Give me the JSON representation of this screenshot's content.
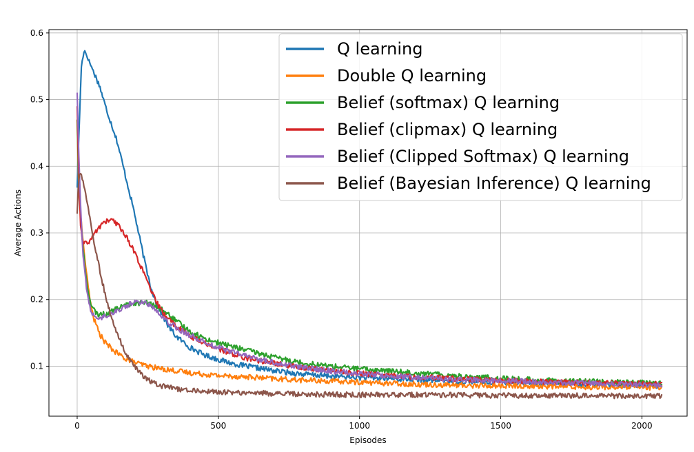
{
  "chart_data": {
    "type": "line",
    "title": "",
    "xlabel": "Episodes",
    "ylabel": "Average Actions",
    "xlim": [
      -100,
      2160
    ],
    "ylim": [
      0.025,
      0.605
    ],
    "xticks": [
      0,
      500,
      1000,
      1500,
      2000
    ],
    "yticks": [
      0.1,
      0.2,
      0.3,
      0.4,
      0.5,
      0.6
    ],
    "grid": true,
    "legend_position": "top-right",
    "noise_amplitude": 0.004,
    "series": [
      {
        "name": "Q learning",
        "color": "#1f77b4",
        "points": [
          [
            0,
            0.37
          ],
          [
            8,
            0.47
          ],
          [
            15,
            0.55
          ],
          [
            25,
            0.575
          ],
          [
            40,
            0.56
          ],
          [
            60,
            0.54
          ],
          [
            80,
            0.52
          ],
          [
            100,
            0.49
          ],
          [
            120,
            0.465
          ],
          [
            140,
            0.44
          ],
          [
            160,
            0.405
          ],
          [
            180,
            0.37
          ],
          [
            200,
            0.335
          ],
          [
            220,
            0.295
          ],
          [
            240,
            0.255
          ],
          [
            260,
            0.22
          ],
          [
            280,
            0.195
          ],
          [
            300,
            0.178
          ],
          [
            320,
            0.162
          ],
          [
            350,
            0.145
          ],
          [
            400,
            0.128
          ],
          [
            450,
            0.117
          ],
          [
            500,
            0.11
          ],
          [
            550,
            0.104
          ],
          [
            600,
            0.1
          ],
          [
            700,
            0.093
          ],
          [
            800,
            0.088
          ],
          [
            900,
            0.085
          ],
          [
            1000,
            0.083
          ],
          [
            1200,
            0.08
          ],
          [
            1400,
            0.077
          ],
          [
            1600,
            0.075
          ],
          [
            1800,
            0.073
          ],
          [
            2000,
            0.071
          ],
          [
            2070,
            0.07
          ]
        ]
      },
      {
        "name": "Double Q learning",
        "color": "#ff7f0e",
        "points": [
          [
            0,
            0.47
          ],
          [
            5,
            0.37
          ],
          [
            12,
            0.33
          ],
          [
            20,
            0.29
          ],
          [
            30,
            0.25
          ],
          [
            45,
            0.2
          ],
          [
            60,
            0.17
          ],
          [
            80,
            0.148
          ],
          [
            100,
            0.135
          ],
          [
            130,
            0.123
          ],
          [
            160,
            0.114
          ],
          [
            200,
            0.106
          ],
          [
            250,
            0.1
          ],
          [
            300,
            0.096
          ],
          [
            400,
            0.09
          ],
          [
            500,
            0.086
          ],
          [
            600,
            0.084
          ],
          [
            700,
            0.081
          ],
          [
            800,
            0.079
          ],
          [
            1000,
            0.076
          ],
          [
            1200,
            0.073
          ],
          [
            1400,
            0.071
          ],
          [
            1600,
            0.07
          ],
          [
            1800,
            0.069
          ],
          [
            2000,
            0.068
          ],
          [
            2070,
            0.068
          ]
        ]
      },
      {
        "name": "Belief (softmax) Q learning",
        "color": "#2ca02c",
        "points": [
          [
            0,
            0.47
          ],
          [
            5,
            0.39
          ],
          [
            12,
            0.33
          ],
          [
            20,
            0.28
          ],
          [
            35,
            0.22
          ],
          [
            50,
            0.19
          ],
          [
            70,
            0.178
          ],
          [
            100,
            0.178
          ],
          [
            150,
            0.188
          ],
          [
            200,
            0.195
          ],
          [
            250,
            0.195
          ],
          [
            300,
            0.185
          ],
          [
            350,
            0.168
          ],
          [
            400,
            0.152
          ],
          [
            450,
            0.142
          ],
          [
            500,
            0.135
          ],
          [
            600,
            0.124
          ],
          [
            700,
            0.113
          ],
          [
            800,
            0.105
          ],
          [
            900,
            0.1
          ],
          [
            1000,
            0.096
          ],
          [
            1200,
            0.09
          ],
          [
            1400,
            0.084
          ],
          [
            1600,
            0.08
          ],
          [
            1800,
            0.077
          ],
          [
            2000,
            0.075
          ],
          [
            2070,
            0.074
          ]
        ]
      },
      {
        "name": "Belief (clipmax) Q learning",
        "color": "#d62728",
        "points": [
          [
            0,
            0.49
          ],
          [
            5,
            0.4
          ],
          [
            12,
            0.31
          ],
          [
            20,
            0.285
          ],
          [
            40,
            0.285
          ],
          [
            60,
            0.298
          ],
          [
            90,
            0.315
          ],
          [
            120,
            0.32
          ],
          [
            150,
            0.31
          ],
          [
            180,
            0.29
          ],
          [
            210,
            0.265
          ],
          [
            240,
            0.235
          ],
          [
            270,
            0.205
          ],
          [
            300,
            0.182
          ],
          [
            350,
            0.16
          ],
          [
            400,
            0.145
          ],
          [
            450,
            0.135
          ],
          [
            500,
            0.126
          ],
          [
            600,
            0.112
          ],
          [
            700,
            0.104
          ],
          [
            800,
            0.098
          ],
          [
            900,
            0.093
          ],
          [
            1000,
            0.089
          ],
          [
            1200,
            0.084
          ],
          [
            1400,
            0.08
          ],
          [
            1600,
            0.077
          ],
          [
            1800,
            0.075
          ],
          [
            2000,
            0.074
          ],
          [
            2070,
            0.073
          ]
        ]
      },
      {
        "name": "Belief (Clipped Softmax) Q learning",
        "color": "#9467bd",
        "points": [
          [
            0,
            0.51
          ],
          [
            5,
            0.43
          ],
          [
            12,
            0.34
          ],
          [
            20,
            0.27
          ],
          [
            35,
            0.21
          ],
          [
            50,
            0.18
          ],
          [
            70,
            0.172
          ],
          [
            100,
            0.175
          ],
          [
            150,
            0.185
          ],
          [
            200,
            0.196
          ],
          [
            240,
            0.196
          ],
          [
            280,
            0.185
          ],
          [
            320,
            0.167
          ],
          [
            370,
            0.153
          ],
          [
            420,
            0.142
          ],
          [
            470,
            0.133
          ],
          [
            500,
            0.128
          ],
          [
            600,
            0.115
          ],
          [
            700,
            0.105
          ],
          [
            800,
            0.098
          ],
          [
            900,
            0.093
          ],
          [
            1000,
            0.089
          ],
          [
            1200,
            0.083
          ],
          [
            1400,
            0.079
          ],
          [
            1600,
            0.077
          ],
          [
            1800,
            0.074
          ],
          [
            2000,
            0.072
          ],
          [
            2070,
            0.071
          ]
        ]
      },
      {
        "name": "Belief (Bayesian Inference) Q learning",
        "color": "#8c564b",
        "points": [
          [
            0,
            0.33
          ],
          [
            5,
            0.38
          ],
          [
            12,
            0.39
          ],
          [
            25,
            0.37
          ],
          [
            40,
            0.335
          ],
          [
            60,
            0.285
          ],
          [
            80,
            0.245
          ],
          [
            100,
            0.205
          ],
          [
            120,
            0.175
          ],
          [
            140,
            0.15
          ],
          [
            160,
            0.13
          ],
          [
            180,
            0.113
          ],
          [
            200,
            0.1
          ],
          [
            230,
            0.087
          ],
          [
            260,
            0.077
          ],
          [
            300,
            0.07
          ],
          [
            350,
            0.066
          ],
          [
            400,
            0.064
          ],
          [
            500,
            0.061
          ],
          [
            600,
            0.06
          ],
          [
            800,
            0.058
          ],
          [
            1000,
            0.057
          ],
          [
            1200,
            0.057
          ],
          [
            1500,
            0.056
          ],
          [
            1800,
            0.056
          ],
          [
            2000,
            0.055
          ],
          [
            2070,
            0.055
          ]
        ]
      }
    ]
  }
}
